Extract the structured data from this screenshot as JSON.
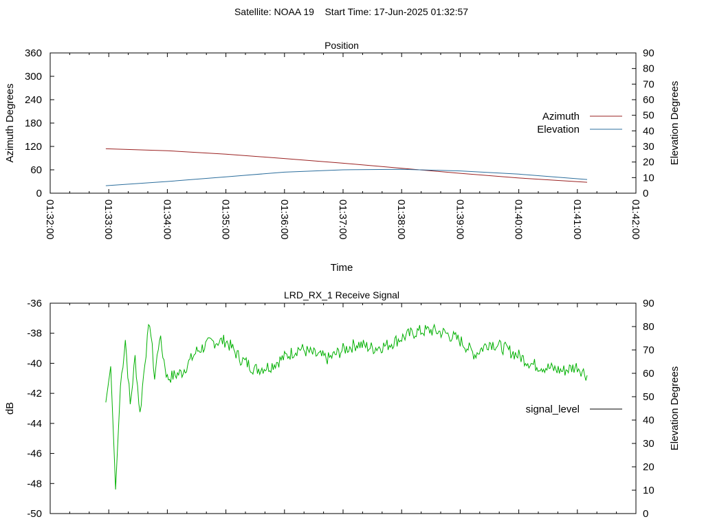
{
  "figure": {
    "title": "Satellite: NOAA 19    Start Time: 17-Jun-2025 01:32:57"
  },
  "colors": {
    "azimuth": "#9a2020",
    "elevation": "#2a6d9c",
    "signal": "#00b000"
  },
  "chart_data": [
    {
      "type": "line",
      "title": "Position",
      "xlabel": "Time",
      "ylabel": "Azimuth Degrees",
      "y2label": "Elevation Degrees",
      "xlim": [
        "01:32:00",
        "01:42:00"
      ],
      "x_ticks": [
        "01:32:00",
        "01:33:00",
        "01:34:00",
        "01:35:00",
        "01:36:00",
        "01:37:00",
        "01:38:00",
        "01:39:00",
        "01:40:00",
        "01:41:00",
        "01:42:00"
      ],
      "ylim": [
        0,
        360
      ],
      "y_ticks": [
        "0",
        "60",
        "120",
        "180",
        "240",
        "300",
        "360"
      ],
      "y2lim": [
        0,
        90
      ],
      "y2_ticks": [
        "0",
        "10",
        "20",
        "30",
        "40",
        "50",
        "60",
        "70",
        "80",
        "90"
      ],
      "grid": false,
      "legend_position": "right",
      "series": [
        {
          "name": "Azimuth",
          "axis": "y",
          "x": [
            "01:32:57",
            "01:34:00",
            "01:35:00",
            "01:36:00",
            "01:37:00",
            "01:38:00",
            "01:39:00",
            "01:40:00",
            "01:41:10"
          ],
          "values": [
            114,
            109,
            100,
            89,
            77,
            64,
            51,
            39,
            28
          ]
        },
        {
          "name": "Elevation",
          "axis": "y2",
          "x": [
            "01:32:57",
            "01:34:00",
            "01:35:00",
            "01:36:00",
            "01:37:00",
            "01:38:00",
            "01:39:00",
            "01:40:00",
            "01:41:10"
          ],
          "values": [
            4.8,
            7.5,
            10.5,
            13.5,
            15.0,
            15.3,
            14.3,
            12.2,
            8.8
          ]
        }
      ]
    },
    {
      "type": "line",
      "title": "LRD_RX_1 Receive Signal",
      "xlabel": "",
      "ylabel": "dB",
      "y2label": "Elevation Degrees",
      "xlim": [
        "01:32:00",
        "01:42:00"
      ],
      "ylim": [
        -50,
        -36
      ],
      "y_ticks": [
        "-36",
        "-38",
        "-40",
        "-42",
        "-44",
        "-46",
        "-48",
        "-50"
      ],
      "y2lim": [
        0,
        90
      ],
      "y2_ticks": [
        "0",
        "10",
        "20",
        "30",
        "40",
        "50",
        "60",
        "70",
        "80",
        "90"
      ],
      "grid": false,
      "legend_position": "right",
      "series": [
        {
          "name": "signal_level",
          "axis": "y",
          "x": [
            "01:32:57",
            "01:33:02",
            "01:33:07",
            "01:33:12",
            "01:33:17",
            "01:33:22",
            "01:33:27",
            "01:33:32",
            "01:33:37",
            "01:33:42",
            "01:33:47",
            "01:33:52",
            "01:34:00",
            "01:34:15",
            "01:34:30",
            "01:34:45",
            "01:35:00",
            "01:35:15",
            "01:35:30",
            "01:35:45",
            "01:36:00",
            "01:36:15",
            "01:36:30",
            "01:36:45",
            "01:37:00",
            "01:37:15",
            "01:37:30",
            "01:37:45",
            "01:38:00",
            "01:38:15",
            "01:38:30",
            "01:38:45",
            "01:39:00",
            "01:39:15",
            "01:39:30",
            "01:39:45",
            "01:40:00",
            "01:40:15",
            "01:40:30",
            "01:40:45",
            "01:41:00",
            "01:41:10"
          ],
          "values": [
            -42.6,
            -40.2,
            -48.4,
            -41.5,
            -38.4,
            -42.8,
            -39.6,
            -43.4,
            -39.8,
            -37.2,
            -41.0,
            -38.2,
            -41.0,
            -40.6,
            -39.2,
            -38.6,
            -38.5,
            -39.7,
            -40.4,
            -40.2,
            -39.6,
            -39.0,
            -39.4,
            -39.7,
            -39.1,
            -38.7,
            -39.0,
            -38.8,
            -38.3,
            -37.9,
            -37.8,
            -38.0,
            -38.5,
            -39.4,
            -38.6,
            -39.0,
            -39.5,
            -40.1,
            -40.3,
            -40.5,
            -40.2,
            -40.8
          ]
        }
      ]
    }
  ]
}
